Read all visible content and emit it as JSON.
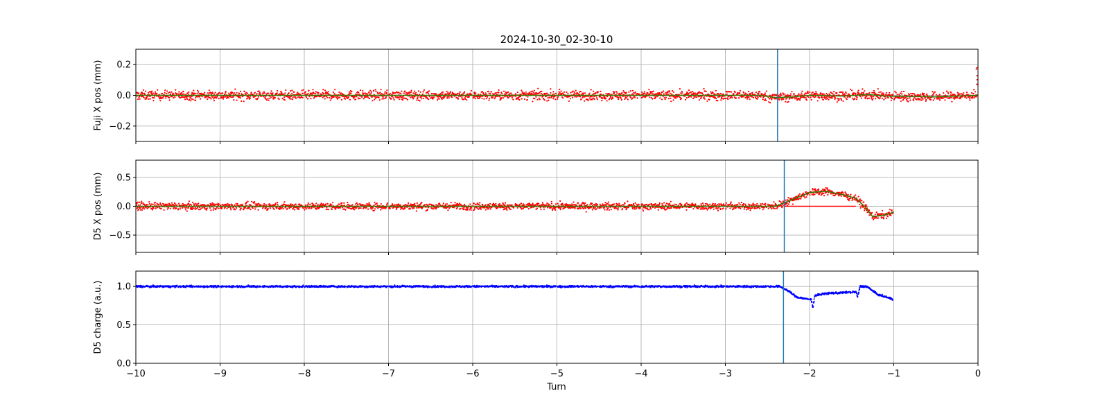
{
  "figure_title": "2024-10-30_02-30-10",
  "chart_data": [
    {
      "type": "scatter",
      "panel": "fuji",
      "title": "2024-10-30_02-30-10",
      "ylabel": "Fuji X pos (mm)",
      "xlabel": "",
      "xlim": [
        -10,
        0
      ],
      "ylim": [
        -0.3,
        0.3
      ],
      "yticks": [
        -0.2,
        0.0,
        0.2
      ],
      "ytick_labels": [
        "−0.2",
        "0.0",
        "0.2"
      ],
      "grid": true,
      "marker_line_x": -2.38,
      "marker_line_color": "#1f77b4",
      "series": [
        {
          "kind": "points",
          "color": "#ff0000",
          "x_range": [
            -10,
            0
          ],
          "segment_length": 0.5,
          "baseline": [
            [
              -10,
              0.0
            ],
            [
              -2.6,
              0.0
            ],
            [
              -2.4,
              -0.015
            ],
            [
              -2.2,
              -0.01
            ],
            [
              -2.0,
              0.0
            ],
            [
              -1.6,
              -0.005
            ],
            [
              -1.3,
              0.005
            ],
            [
              -1.1,
              -0.005
            ],
            [
              -0.5,
              -0.01
            ],
            [
              0,
              0.0
            ]
          ],
          "spread": 0.03,
          "outlier_max": 0.18
        },
        {
          "kind": "line",
          "color": "#2e7d00",
          "x": [
            -10,
            -2.6,
            -2.4,
            -2.2,
            -2.0,
            -1.6,
            -1.3,
            -1.1,
            -0.5,
            0
          ],
          "y": [
            0.0,
            0.0,
            -0.015,
            -0.01,
            0.0,
            -0.005,
            0.005,
            -0.005,
            -0.01,
            0.0
          ]
        }
      ]
    },
    {
      "type": "scatter",
      "panel": "d5pos",
      "title": "",
      "ylabel": "D5 X pos (mm)",
      "xlabel": "",
      "xlim": [
        -10,
        0
      ],
      "ylim": [
        -0.8,
        0.8
      ],
      "yticks": [
        -0.5,
        0.0,
        0.5
      ],
      "ytick_labels": [
        "−0.5",
        "0.0",
        "0.5"
      ],
      "grid": true,
      "marker_line_x": -2.3,
      "marker_line_color": "#1f77b4",
      "series": [
        {
          "kind": "points",
          "color": "#ff0000",
          "x_range": [
            -10,
            -1.0
          ],
          "segment_length": 0.5,
          "baseline": [
            [
              -10,
              0.0
            ],
            [
              -2.4,
              0.0
            ],
            [
              -2.2,
              0.12
            ],
            [
              -2.0,
              0.24
            ],
            [
              -1.8,
              0.26
            ],
            [
              -1.6,
              0.2
            ],
            [
              -1.45,
              0.14
            ],
            [
              -1.35,
              0.0
            ],
            [
              -1.25,
              -0.18
            ],
            [
              -1.1,
              -0.15
            ],
            [
              -1.0,
              -0.1
            ]
          ],
          "spread": 0.06,
          "outlier_max": 0.0
        },
        {
          "kind": "line",
          "color": "#2e7d00",
          "x": [
            -10,
            -2.4,
            -2.2,
            -2.0,
            -1.8,
            -1.6,
            -1.45,
            -1.35,
            -1.25,
            -1.1,
            -1.0
          ],
          "y": [
            0.0,
            0.0,
            0.12,
            0.24,
            0.26,
            0.2,
            0.14,
            0.0,
            -0.18,
            -0.15,
            -0.1
          ]
        },
        {
          "kind": "line",
          "color": "#ff0000",
          "x": [
            -2.3,
            -1.45
          ],
          "y": [
            0.0,
            0.0
          ]
        }
      ]
    },
    {
      "type": "scatter",
      "panel": "d5charge",
      "title": "",
      "ylabel": "D5 charge (a.u.)",
      "xlabel": "Turn",
      "xlim": [
        -10,
        0
      ],
      "ylim": [
        0.0,
        1.2
      ],
      "yticks": [
        0.0,
        0.5,
        1.0
      ],
      "ytick_labels": [
        "0.0",
        "0.5",
        "1.0"
      ],
      "xticks": [
        -10,
        -9,
        -8,
        -7,
        -6,
        -5,
        -4,
        -3,
        -2,
        -1,
        0
      ],
      "xtick_labels": [
        "−10",
        "−9",
        "−8",
        "−7",
        "−6",
        "−5",
        "−4",
        "−3",
        "−2",
        "−1",
        "0"
      ],
      "grid": true,
      "marker_line_x": -2.31,
      "marker_line_color": "#1f77b4",
      "series": [
        {
          "kind": "points",
          "color": "#0000ff",
          "x_range": [
            -10,
            -1.0
          ],
          "segment_length": 0.5,
          "baseline": [
            [
              -10,
              1.0
            ],
            [
              -2.35,
              1.0
            ],
            [
              -2.25,
              0.94
            ],
            [
              -2.15,
              0.86
            ],
            [
              -2.05,
              0.84
            ],
            [
              -1.98,
              0.83
            ],
            [
              -1.96,
              0.72
            ],
            [
              -1.94,
              0.88
            ],
            [
              -1.8,
              0.91
            ],
            [
              -1.6,
              0.92
            ],
            [
              -1.45,
              0.93
            ],
            [
              -1.43,
              0.86
            ],
            [
              -1.4,
              1.0
            ],
            [
              -1.32,
              1.0
            ],
            [
              -1.2,
              0.9
            ],
            [
              -1.0,
              0.83
            ]
          ],
          "spread": 0.012,
          "outlier_max": 0.0
        }
      ]
    }
  ]
}
